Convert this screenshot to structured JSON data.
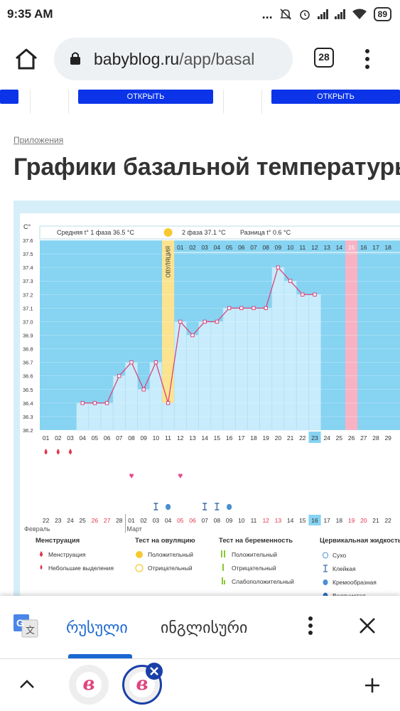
{
  "status_bar": {
    "time": "9:35 AM",
    "battery": "89",
    "more": "...",
    "icons": [
      "mute-icon",
      "alarm-icon",
      "signal-icon",
      "signal-icon",
      "wifi-icon",
      "battery-icon"
    ]
  },
  "browser": {
    "url_host": "babyblog.ru",
    "url_path": "/app/basal",
    "tab_count": "28",
    "icons": [
      "home-icon",
      "lock-icon",
      "menu-dots-icon"
    ]
  },
  "page": {
    "open_button": "ОТКРЫТЬ",
    "breadcrumb": "Приложения",
    "title": "Графики базальной температуры"
  },
  "chart": {
    "y_unit": "C°",
    "phase1_text": "Средняя t° 1 фаза 36.5 °C",
    "phase2_text": "2 фаза 37.1 °C",
    "diff_text": "Разница t° 0.6 °C",
    "ovulation_label": "ОВУЛЯЦИЯ",
    "month1": "Февраль",
    "month2": "Март",
    "colors": {
      "plot_bg": "#86d3f2",
      "bar": "#c8ecfb",
      "line": "#d9457a",
      "ovulation": "#fbe38f",
      "highlight": "#f7b3c4"
    }
  },
  "chart_data": {
    "type": "area",
    "title": "",
    "y_ticks": [
      "36.2",
      "36.3",
      "36.4",
      "36.5",
      "36.6",
      "36.7",
      "36.8",
      "36.9",
      "37.0",
      "37.1",
      "37.2",
      "37.3",
      "37.4",
      "37.5",
      "37.6"
    ],
    "ylim": [
      36.2,
      37.6
    ],
    "cycle_days": [
      "01",
      "02",
      "03",
      "04",
      "05",
      "06",
      "07",
      "08",
      "09",
      "10",
      "11",
      "12",
      "13",
      "14",
      "15",
      "16",
      "17",
      "18",
      "19",
      "20",
      "21",
      "22",
      "23",
      "24",
      "25",
      "26",
      "27",
      "28",
      "29"
    ],
    "dates": [
      "22",
      "23",
      "24",
      "25",
      "26",
      "27",
      "28",
      "01",
      "02",
      "03",
      "04",
      "05",
      "06",
      "07",
      "08",
      "09",
      "10",
      "11",
      "12",
      "13",
      "14",
      "15",
      "16",
      "17",
      "18",
      "19",
      "20",
      "21",
      "22"
    ],
    "red_dates": [
      "26",
      "27",
      "05",
      "06",
      "12",
      "13",
      "19",
      "20"
    ],
    "top_axis_days": [
      "01",
      "02",
      "03",
      "04",
      "05",
      "06",
      "07",
      "08",
      "09",
      "10",
      "11",
      "12",
      "13",
      "14",
      "15",
      "16",
      "17",
      "18"
    ],
    "temperatures": [
      null,
      null,
      null,
      36.4,
      36.4,
      36.4,
      36.6,
      36.7,
      36.5,
      36.7,
      36.4,
      37.0,
      36.9,
      37.0,
      37.0,
      37.1,
      37.1,
      37.1,
      37.1,
      37.4,
      37.3,
      37.2,
      37.2
    ],
    "ovulation_day": "11",
    "current_day": "23",
    "current_date": "16",
    "highlight_top_day": "15",
    "menstruation_days": [
      "01",
      "02",
      "03"
    ],
    "intercourse_days": [
      "08",
      "12"
    ],
    "cervical_marks": [
      {
        "day": "10",
        "type": "Клейкая"
      },
      {
        "day": "11",
        "type": "Кремообразная"
      },
      {
        "day": "14",
        "type": "Клейкая"
      },
      {
        "day": "15",
        "type": "Клейкая"
      },
      {
        "day": "16",
        "type": "Кремообразная"
      }
    ]
  },
  "legend": {
    "menstruation": {
      "title": "Менструация",
      "items": [
        "Менструация",
        "Небольшие выделения"
      ]
    },
    "ovulation_test": {
      "title": "Тест на овуляцию",
      "items": [
        "Положительный",
        "Отрицательный"
      ]
    },
    "pregnancy_test": {
      "title": "Тест на беременность",
      "items": [
        "Положительный",
        "Отрицательный",
        "Слабоположительный"
      ]
    },
    "cervical": {
      "title": "Цервикальная жидкость",
      "items": [
        "Сухо",
        "Клейкая",
        "Кремообразная",
        "Водянистая"
      ]
    }
  },
  "translate": {
    "active_lang": "რუსული",
    "other_lang": "ინგლისური"
  }
}
